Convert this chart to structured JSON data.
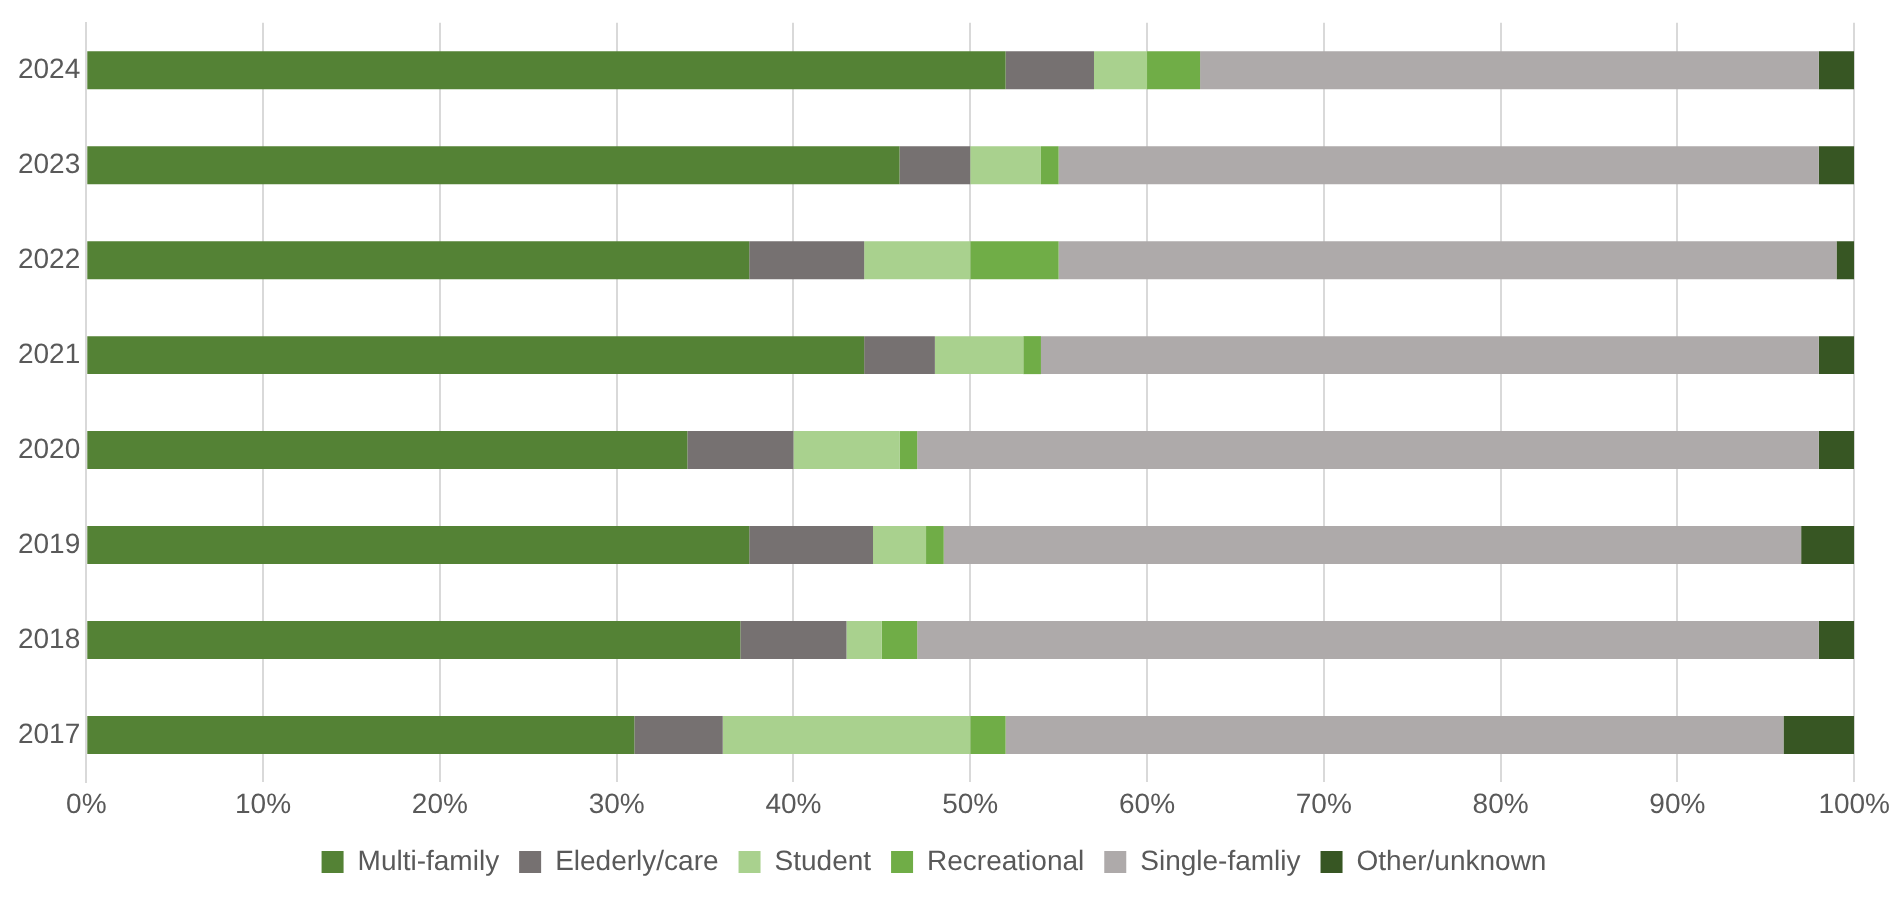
{
  "chart_data": {
    "type": "bar",
    "orientation": "horizontal",
    "stacked": true,
    "categories": [
      "2024",
      "2023",
      "2022",
      "2021",
      "2020",
      "2019",
      "2018",
      "2017"
    ],
    "series": [
      {
        "name": "Multi-family",
        "color": "#548235",
        "values": [
          52,
          46,
          37.5,
          44,
          34,
          37.5,
          37,
          31
        ]
      },
      {
        "name": "Elederly/care",
        "color": "#767171",
        "values": [
          5,
          4,
          6.5,
          4,
          6,
          7,
          6,
          5
        ]
      },
      {
        "name": "Student",
        "color": "#a9d18e",
        "values": [
          3,
          4,
          6,
          5,
          6,
          3,
          2,
          14
        ]
      },
      {
        "name": "Recreational",
        "color": "#70ad47",
        "values": [
          3,
          1,
          5,
          1,
          1,
          1,
          2,
          2
        ]
      },
      {
        "name": "Single-famliy",
        "color": "#aeaaaa",
        "values": [
          35,
          43,
          44,
          44,
          51,
          48.5,
          51,
          44
        ]
      },
      {
        "name": "Other/unknown",
        "color": "#375623",
        "values": [
          2,
          2,
          1,
          2,
          2,
          3,
          2,
          4
        ]
      }
    ],
    "xlim": [
      0,
      100
    ],
    "xticks": [
      {
        "value": 0,
        "label": "0%"
      },
      {
        "value": 10,
        "label": "10%"
      },
      {
        "value": 20,
        "label": "20%"
      },
      {
        "value": 30,
        "label": "30%"
      },
      {
        "value": 40,
        "label": "40%"
      },
      {
        "value": 50,
        "label": "50%"
      },
      {
        "value": 60,
        "label": "60%"
      },
      {
        "value": 70,
        "label": "70%"
      },
      {
        "value": 80,
        "label": "80%"
      },
      {
        "value": 90,
        "label": "90%"
      },
      {
        "value": 100,
        "label": "100%"
      }
    ],
    "grid": "x",
    "legend": "bottom"
  }
}
